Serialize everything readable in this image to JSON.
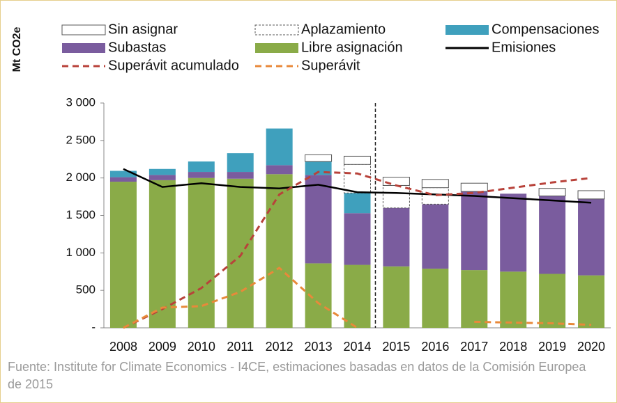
{
  "chart_data": {
    "type": "bar",
    "y_label": "Mt CO2e",
    "source": "Fuente: Institute for Climate Economics - I4CE, estimaciones basadas en datos de la Comisión Europea de 2015",
    "categories": [
      "2008",
      "2009",
      "2010",
      "2011",
      "2012",
      "2013",
      "2014",
      "2015",
      "2016",
      "2017",
      "2018",
      "2019",
      "2020"
    ],
    "ylim": [
      0,
      3000
    ],
    "yticks": [
      {
        "value": 0,
        "label": "-"
      },
      500,
      {
        "value": 1000,
        "label": "1 000"
      },
      {
        "value": 1500,
        "label": "1 500"
      },
      {
        "value": 2000,
        "label": "2 000"
      },
      {
        "value": 2500,
        "label": "2 500"
      },
      {
        "value": 3000,
        "label": "3 000"
      }
    ],
    "grid": false,
    "series": [
      {
        "name": "Sin asignar",
        "kind": "bar",
        "color": "#ffffff",
        "values": [
          0,
          0,
          0,
          0,
          0,
          90,
          110,
          110,
          110,
          110,
          0,
          100,
          110
        ]
      },
      {
        "name": "Aplazamiento",
        "kind": "bar",
        "style": "dashed",
        "color": "#ffffff",
        "values": [
          0,
          0,
          0,
          0,
          0,
          0,
          380,
          300,
          220,
          0,
          0,
          0,
          0
        ]
      },
      {
        "name": "Compensaciones",
        "kind": "bar",
        "color": "#3fa0bd",
        "values": [
          85,
          80,
          140,
          250,
          490,
          180,
          270,
          0,
          0,
          0,
          0,
          0,
          0
        ]
      },
      {
        "name": "Subastas",
        "kind": "bar",
        "color": "#7a5c9e",
        "values": [
          60,
          70,
          80,
          90,
          120,
          1180,
          690,
          780,
          860,
          1050,
          1040,
          1040,
          1020
        ]
      },
      {
        "name": "Libre asignación",
        "kind": "bar",
        "color": "#8aab48",
        "values": [
          1950,
          1970,
          2000,
          1990,
          2050,
          860,
          840,
          820,
          790,
          770,
          750,
          720,
          700
        ]
      },
      {
        "name": "Emisiones",
        "kind": "line",
        "color": "#000000",
        "values": [
          2120,
          1880,
          1930,
          1880,
          1860,
          1910,
          1810,
          1800,
          1780,
          1760,
          1730,
          1700,
          1670
        ]
      },
      {
        "name": "Superávit acumulado",
        "kind": "line",
        "style": "dashed",
        "color": "#b8423a",
        "values": [
          0,
          250,
          530,
          960,
          1780,
          2080,
          2060,
          1900,
          1770,
          1800,
          1870,
          1940,
          2000
        ]
      },
      {
        "name": "Superávit",
        "kind": "line",
        "style": "dashed",
        "color": "#e8893a",
        "values": [
          0,
          270,
          290,
          480,
          800,
          330,
          0,
          null,
          null,
          80,
          70,
          60,
          40
        ]
      }
    ]
  }
}
